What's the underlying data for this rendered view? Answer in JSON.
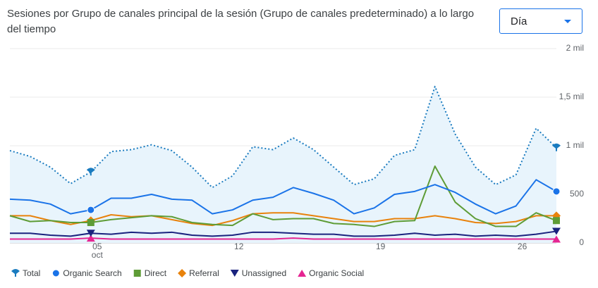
{
  "chart_data": {
    "type": "line",
    "title": "Sesiones por Grupo de canales principal de la sesión (Grupo de canales predeterminado) a lo largo del tiempo",
    "dropdown": "Día",
    "x_sublabel": "oct",
    "categories": [
      null,
      null,
      null,
      null,
      "05",
      null,
      null,
      null,
      null,
      null,
      null,
      "12",
      null,
      null,
      null,
      null,
      null,
      null,
      "19",
      null,
      null,
      null,
      null,
      null,
      null,
      "26",
      null,
      null
    ],
    "markers_at": [
      4,
      27
    ],
    "ylim": [
      0,
      2000
    ],
    "yticks": [
      0,
      500,
      {
        "value": 1000,
        "label": "1 mil"
      },
      {
        "value": 1500,
        "label": "1,5 mil"
      },
      {
        "value": 2000,
        "label": "2 mil"
      }
    ],
    "grid": true,
    "legend": "bottom",
    "series": [
      {
        "name": "Total",
        "color": "#1a7bbf",
        "marker": "pin",
        "line_style": "dotted",
        "fill": "#e8f4fc",
        "values": [
          950,
          890,
          780,
          610,
          730,
          940,
          960,
          1010,
          950,
          780,
          570,
          690,
          990,
          960,
          1080,
          960,
          780,
          600,
          660,
          900,
          960,
          1610,
          1120,
          780,
          600,
          700,
          1180,
          980
        ]
      },
      {
        "name": "Organic Search",
        "color": "#1a73e8",
        "marker": "circle",
        "values": [
          450,
          440,
          400,
          300,
          340,
          460,
          460,
          500,
          450,
          440,
          300,
          340,
          440,
          470,
          570,
          510,
          440,
          300,
          360,
          500,
          530,
          600,
          520,
          400,
          300,
          380,
          650,
          530
        ]
      },
      {
        "name": "Direct",
        "color": "#5e9c36",
        "marker": "square",
        "values": [
          280,
          220,
          230,
          210,
          210,
          240,
          260,
          280,
          270,
          210,
          190,
          180,
          300,
          240,
          250,
          250,
          200,
          190,
          170,
          220,
          230,
          790,
          420,
          250,
          170,
          170,
          310,
          230
        ]
      },
      {
        "name": "Referral",
        "color": "#e8820c",
        "marker": "diamond",
        "values": [
          280,
          280,
          230,
          190,
          230,
          290,
          270,
          280,
          240,
          200,
          180,
          230,
          300,
          310,
          310,
          280,
          250,
          220,
          220,
          250,
          250,
          280,
          250,
          210,
          200,
          220,
          280,
          280
        ]
      },
      {
        "name": "Unassigned",
        "color": "#1a237e",
        "marker": "triangle-down",
        "values": [
          100,
          100,
          80,
          70,
          100,
          90,
          110,
          100,
          110,
          80,
          70,
          80,
          110,
          110,
          100,
          90,
          90,
          70,
          70,
          80,
          100,
          80,
          90,
          70,
          80,
          70,
          90,
          120
        ]
      },
      {
        "name": "Organic Social",
        "color": "#e52592",
        "marker": "triangle-up",
        "values": [
          40,
          40,
          40,
          40,
          50,
          40,
          40,
          40,
          40,
          40,
          40,
          40,
          40,
          40,
          50,
          40,
          40,
          40,
          40,
          40,
          40,
          40,
          40,
          40,
          40,
          40,
          40,
          40
        ]
      }
    ]
  }
}
